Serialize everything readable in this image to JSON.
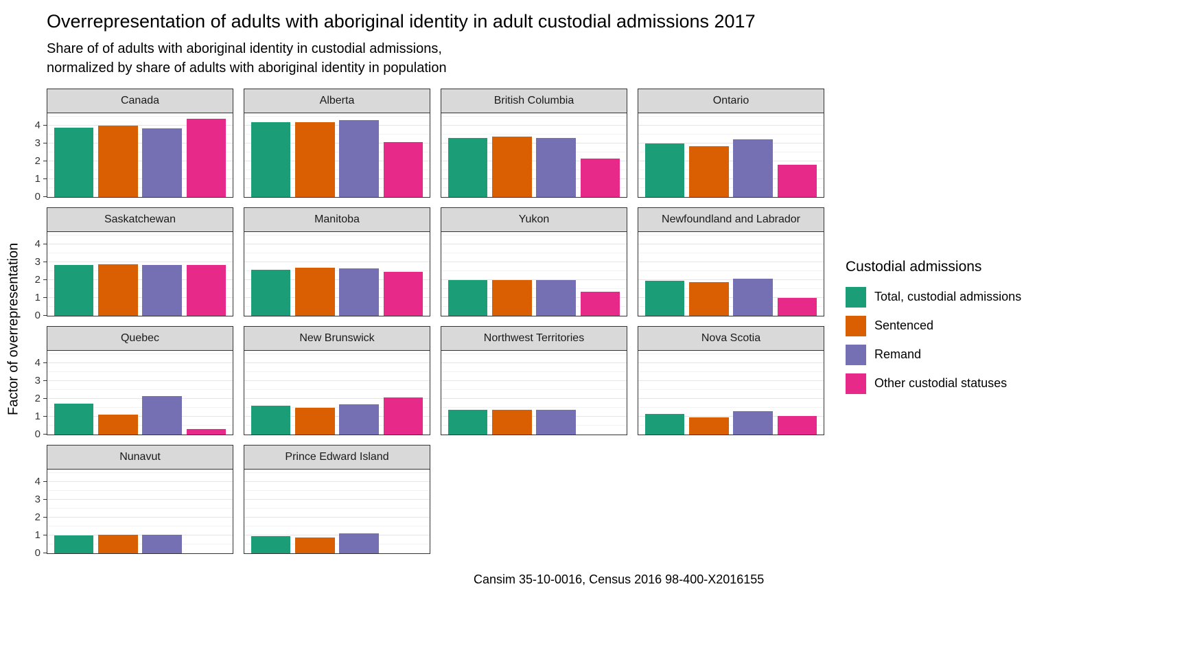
{
  "title": "Overrepresentation of adults with aboriginal identity in adult custodial admissions 2017",
  "subtitle_line1": "Share of of adults with aboriginal identity in custodial admissions,",
  "subtitle_line2": "normalized by share of adults with aboriginal identity in population",
  "ylabel": "Factor of overrepresentation",
  "caption": "Cansim 35-10-0016, Census 2016 98-400-X2016155",
  "legend": {
    "title": "Custodial admissions",
    "items": [
      {
        "label": "Total, custodial admissions",
        "color": "#1b9e77"
      },
      {
        "label": "Sentenced",
        "color": "#d95f02"
      },
      {
        "label": "Remand",
        "color": "#7570b3"
      },
      {
        "label": "Other custodial statuses",
        "color": "#e7298a"
      }
    ]
  },
  "chart_data": {
    "type": "bar",
    "title": "Overrepresentation of adults with aboriginal identity in adult custodial admissions 2017",
    "subtitle": "Share of of adults with aboriginal identity in custodial admissions, normalized by share of adults with aboriginal identity in population",
    "ylabel": "Factor of overrepresentation",
    "xlabel": "",
    "ylim": [
      0,
      4.7
    ],
    "yticks": [
      0,
      1,
      2,
      3,
      4
    ],
    "grid": true,
    "legend_position": "right",
    "legend_title": "Custodial admissions",
    "series_names": [
      "Total, custodial admissions",
      "Sentenced",
      "Remand",
      "Other custodial statuses"
    ],
    "colors": [
      "#1b9e77",
      "#d95f02",
      "#7570b3",
      "#e7298a"
    ],
    "facets": [
      {
        "name": "Canada",
        "values": [
          3.9,
          4.0,
          3.85,
          4.4
        ]
      },
      {
        "name": "Alberta",
        "values": [
          4.2,
          4.2,
          4.3,
          3.1
        ]
      },
      {
        "name": "British Columbia",
        "values": [
          3.3,
          3.4,
          3.3,
          2.15
        ]
      },
      {
        "name": "Ontario",
        "values": [
          3.0,
          2.85,
          3.25,
          1.8
        ]
      },
      {
        "name": "Saskatchewan",
        "values": [
          2.85,
          2.9,
          2.85,
          2.85
        ]
      },
      {
        "name": "Manitoba",
        "values": [
          2.6,
          2.7,
          2.65,
          2.45
        ]
      },
      {
        "name": "Yukon",
        "values": [
          2.0,
          2.0,
          2.0,
          1.35
        ]
      },
      {
        "name": "Newfoundland and Labrador",
        "values": [
          1.95,
          1.9,
          2.1,
          1.0
        ]
      },
      {
        "name": "Quebec",
        "values": [
          1.75,
          1.1,
          2.15,
          0.3
        ]
      },
      {
        "name": "New Brunswick",
        "values": [
          1.6,
          1.5,
          1.7,
          2.1
        ]
      },
      {
        "name": "Northwest Territories",
        "values": [
          1.4,
          1.4,
          1.4,
          null
        ]
      },
      {
        "name": "Nova Scotia",
        "values": [
          1.15,
          0.95,
          1.3,
          1.05
        ]
      },
      {
        "name": "Nunavut",
        "values": [
          1.0,
          1.05,
          1.05,
          null
        ]
      },
      {
        "name": "Prince Edward Island",
        "values": [
          0.95,
          0.9,
          1.1,
          null
        ]
      }
    ]
  }
}
